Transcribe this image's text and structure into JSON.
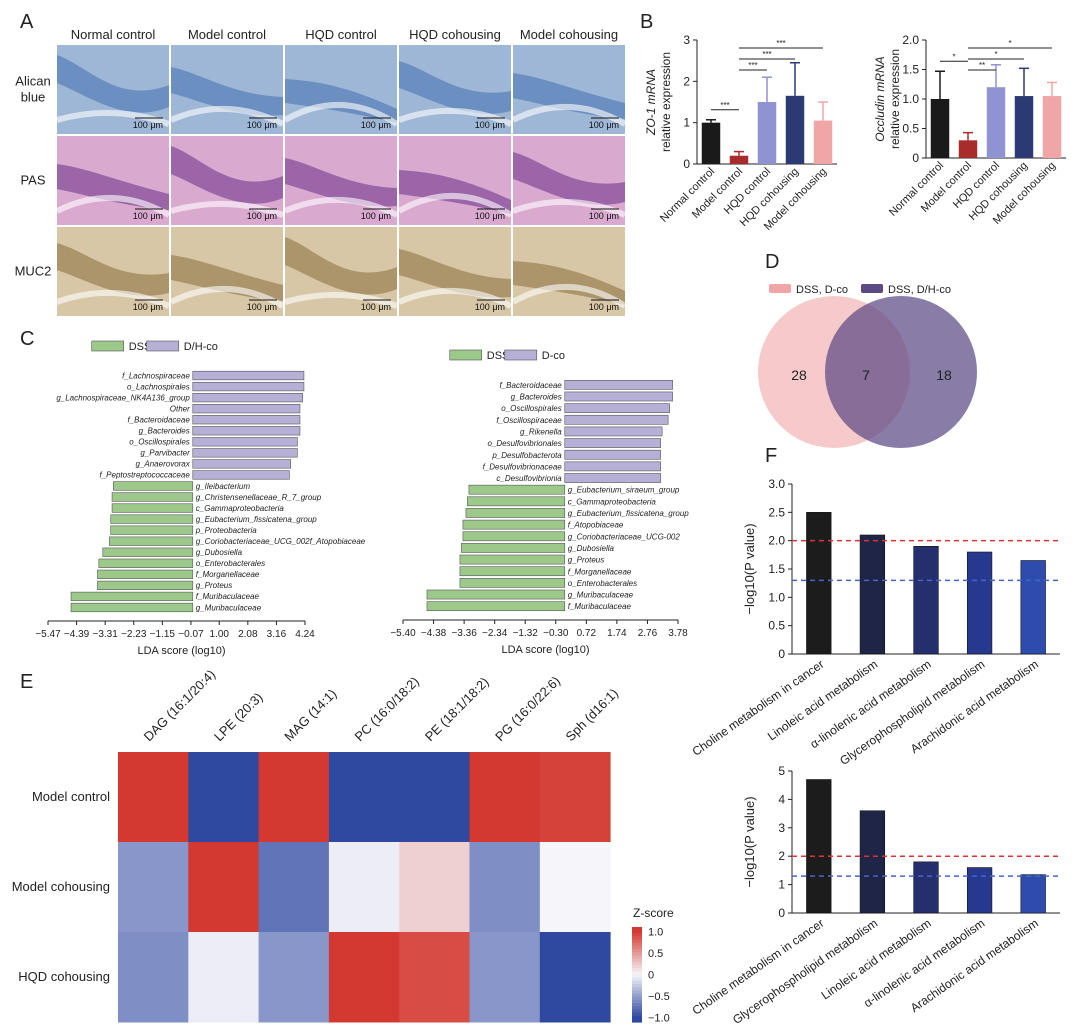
{
  "panels": {
    "A": "A",
    "B": "B",
    "C": "C",
    "D": "D",
    "E": "E",
    "F": "F"
  },
  "histology": {
    "columns": [
      "Normal control",
      "Model control",
      "HQD control",
      "HQD cohousing",
      "Model cohousing"
    ],
    "rows": [
      {
        "label": "Alican\nblue",
        "label_lines": [
          "Alican",
          "blue"
        ],
        "tint": "#9fb7d6",
        "accent": "#3f6fb0"
      },
      {
        "label": "PAS",
        "label_lines": [
          "PAS"
        ],
        "tint": "#d9a9cf",
        "accent": "#6a2d86"
      },
      {
        "label": "MUC2",
        "label_lines": [
          "MUC2"
        ],
        "tint": "#d8c7a6",
        "accent": "#8a6b3a"
      }
    ],
    "scale_bar": "100 μm"
  },
  "chart_data": [
    {
      "id": "B1",
      "type": "bar",
      "title": "",
      "ylabel_lines": [
        "ZO-1 mRNA",
        "relative expression"
      ],
      "categories": [
        "Normal control",
        "Model control",
        "HQD control",
        "HQD cohousing",
        "Model cohousing"
      ],
      "values": [
        1.0,
        0.2,
        1.5,
        1.65,
        1.05
      ],
      "errors": [
        0.07,
        0.1,
        0.6,
        0.8,
        0.45
      ],
      "colors": [
        "#1a1a1a",
        "#a82c2c",
        "#8f93cf",
        "#2c3a73",
        "#f0a6a6"
      ],
      "ylim": [
        0,
        3
      ],
      "yticks": [
        0,
        1,
        2,
        3
      ],
      "significance": [
        {
          "a": 0,
          "b": 1,
          "label": "***"
        },
        {
          "a": 1,
          "b": 2,
          "label": "***"
        },
        {
          "a": 1,
          "b": 3,
          "label": "***"
        },
        {
          "a": 1,
          "b": 4,
          "label": "***"
        }
      ]
    },
    {
      "id": "B2",
      "type": "bar",
      "title": "",
      "ylabel_lines": [
        "Occludin mRNA",
        "relative expression"
      ],
      "categories": [
        "Normal control",
        "Model control",
        "HQD control",
        "HQD cohousing",
        "Model cohousing"
      ],
      "values": [
        1.0,
        0.3,
        1.2,
        1.05,
        1.05
      ],
      "errors": [
        0.47,
        0.13,
        0.38,
        0.47,
        0.23
      ],
      "colors": [
        "#1a1a1a",
        "#a82c2c",
        "#8f93cf",
        "#2c3a73",
        "#f0a6a6"
      ],
      "ylim": [
        0,
        2.0
      ],
      "yticks": [
        0,
        0.5,
        1.0,
        1.5,
        2.0
      ],
      "ytick_labels": [
        "0",
        "0.5",
        "1.0",
        "1.5",
        "2.0"
      ],
      "significance": [
        {
          "a": 0,
          "b": 1,
          "label": "*"
        },
        {
          "a": 1,
          "b": 2,
          "label": "**"
        },
        {
          "a": 1,
          "b": 3,
          "label": "*"
        },
        {
          "a": 1,
          "b": 4,
          "label": "*"
        }
      ]
    },
    {
      "id": "C1",
      "type": "bar",
      "orientation": "horizontal",
      "legend": [
        {
          "name": "DSS",
          "color": "#9cc98a"
        },
        {
          "name": "D/H-co",
          "color": "#b6afd6"
        }
      ],
      "xlabel": "LDA score (log10)",
      "xlim": [
        -5.47,
        4.24
      ],
      "xticks": [
        -5.47,
        -4.39,
        -3.31,
        -2.23,
        -1.15,
        -0.07,
        1.0,
        2.08,
        3.16,
        4.24
      ],
      "xtick_labels": [
        "−5.47",
        "−4.39",
        "−3.31",
        "−2.23",
        "−1.15",
        "−0.07",
        "1.00",
        "2.08",
        "3.16",
        "4.24"
      ],
      "categories": [
        "f_Lachnospiraceae",
        "o_Lachnospirales",
        "g_Lachnospiraceae_NK4A136_group",
        "Other",
        "f_Bacteroidaceae",
        "g_Bacteroides",
        "o_Oscillospirales",
        "g_Parvibacter",
        "g_Anaerovorax",
        "f_Peptostreptococcaceae",
        "g_Ileibacterium",
        "g_Christensenellaceae_R_7_group",
        "c_Gammaproteobacteria",
        "g_Eubacterium_fissicatena_group",
        "p_Proteobacteria",
        "g_Coriobacteriaceae_UCG_002f_Atopobiaceae",
        "g_Dubosiella",
        "o_Enterobacterales",
        "f_Morganellaceae",
        "g_Proteus",
        "f_Muribaculaceae",
        "g_Muribaculaceae"
      ],
      "values": [
        4.2,
        4.2,
        4.15,
        4.05,
        4.05,
        4.05,
        3.95,
        3.95,
        3.7,
        3.65,
        -3.0,
        -3.05,
        -3.05,
        -3.1,
        -3.1,
        -3.15,
        -3.4,
        -3.55,
        -3.6,
        -3.6,
        -4.6,
        -4.6
      ]
    },
    {
      "id": "C2",
      "type": "bar",
      "orientation": "horizontal",
      "legend": [
        {
          "name": "DSS",
          "color": "#9cc98a"
        },
        {
          "name": "D-co",
          "color": "#b6afd6"
        }
      ],
      "xlabel": "LDA score (log10)",
      "xlim": [
        -5.4,
        3.78
      ],
      "xticks": [
        -5.4,
        -4.38,
        -3.36,
        -2.34,
        -1.32,
        -0.3,
        0.72,
        1.74,
        2.76,
        3.78
      ],
      "xtick_labels": [
        "−5.40",
        "−4.38",
        "−3.36",
        "−2.34",
        "−1.32",
        "−0.30",
        "0.72",
        "1.74",
        "2.76",
        "3.78"
      ],
      "categories": [
        "f_Bacteroidaceae",
        "g_Bacteroides",
        "o_Oscillospirales",
        "f_Oscillospiraceae",
        "g_Rikenella",
        "o_Desulfovibrionales",
        "p_Desulfobacterota",
        "f_Desulfovibrionaceae",
        "c_Desulfovibrionia",
        "g_Eubacterium_siraeum_group",
        "c_Gammaproteobacteria",
        "g_Eubacterium_fissicatena_group",
        "f_Atopobiaceae",
        "g_Coriobacteriaceae_UCG-002",
        "g_Dubosiella",
        "g_Proteus",
        "f_Morganellaceae",
        "o_Enterobacterales",
        "g_Muribaculaceae",
        "f_Muribaculaceae"
      ],
      "values": [
        3.6,
        3.6,
        3.5,
        3.45,
        3.25,
        3.2,
        3.2,
        3.2,
        3.2,
        -3.2,
        -3.25,
        -3.3,
        -3.4,
        -3.4,
        -3.45,
        -3.5,
        -3.5,
        -3.5,
        -4.6,
        -4.6
      ]
    },
    {
      "id": "D",
      "type": "venn",
      "sets": [
        {
          "name": "DSS, D-co",
          "color": "#f0a6a6",
          "only": 28
        },
        {
          "name": "DSS, D/H-co",
          "color": "#5b4a83",
          "only": 18
        }
      ],
      "overlap": 7
    },
    {
      "id": "E",
      "type": "heatmap",
      "columns": [
        "DAG (16:1/20:4)",
        "LPE (20:3)",
        "MAG (14:1)",
        "PC (16:0/18:2)",
        "PE (18:1/18:2)",
        "PG (16:0/22:6)",
        "Sph (d16:1)"
      ],
      "rows": [
        "Model control",
        "Model cohousing",
        "HQD cohousing"
      ],
      "values": [
        [
          1.05,
          -1.0,
          1.0,
          -1.0,
          -1.0,
          1.0,
          0.95
        ],
        [
          -0.55,
          1.0,
          -0.75,
          -0.05,
          0.2,
          -0.6,
          0.0
        ],
        [
          -0.6,
          -0.05,
          -0.55,
          1.0,
          0.9,
          -0.55,
          -1.0
        ]
      ],
      "legend_title": "Z-score",
      "legend_ticks": [
        1.0,
        0.5,
        0,
        -0.5,
        -1.0
      ],
      "legend_tick_labels": [
        "1.0",
        "0.5",
        "0",
        "−0.5",
        "−1.0"
      ]
    },
    {
      "id": "F1",
      "type": "bar",
      "ylabel": "−log10(P value)",
      "categories": [
        "Choline metabolism in cancer",
        "Linoleic acid metabolism",
        "α-linolenic acid metabolism",
        "Glycerophospholipid metabolism",
        "Arachidonic acid metabolism"
      ],
      "values": [
        2.5,
        2.1,
        1.9,
        1.8,
        1.65
      ],
      "colors": [
        "#1c1c1c",
        "#1f2547",
        "#262f6e",
        "#27388f",
        "#2d4cae"
      ],
      "ylim": [
        0,
        3.0
      ],
      "yticks": [
        0,
        0.5,
        1.0,
        1.5,
        2.0,
        2.5,
        3.0
      ],
      "ytick_labels": [
        "0",
        "0.5",
        "1.0",
        "1.5",
        "2.0",
        "2.5",
        "3.0"
      ],
      "threshold_lines": [
        {
          "value": 2.0,
          "color": "#d33"
        },
        {
          "value": 1.3,
          "color": "#4466cc"
        }
      ]
    },
    {
      "id": "F2",
      "type": "bar",
      "ylabel": "−log10(P value)",
      "categories": [
        "Choline metabolism in cancer",
        "Glycerophospholipid metabolism",
        "Linoleic acid metabolism",
        "α-linolenic acid metabolism",
        "Arachidonic acid metabolism"
      ],
      "values": [
        4.7,
        3.6,
        1.8,
        1.6,
        1.35
      ],
      "colors": [
        "#1c1c1c",
        "#1f2547",
        "#262f6e",
        "#27388f",
        "#2d4cae"
      ],
      "ylim": [
        0,
        5
      ],
      "yticks": [
        0,
        1,
        2,
        3,
        4,
        5
      ],
      "ytick_labels": [
        "0",
        "1",
        "2",
        "3",
        "4",
        "5"
      ],
      "threshold_lines": [
        {
          "value": 2.0,
          "color": "#d33"
        },
        {
          "value": 1.3,
          "color": "#4466cc"
        }
      ]
    }
  ]
}
